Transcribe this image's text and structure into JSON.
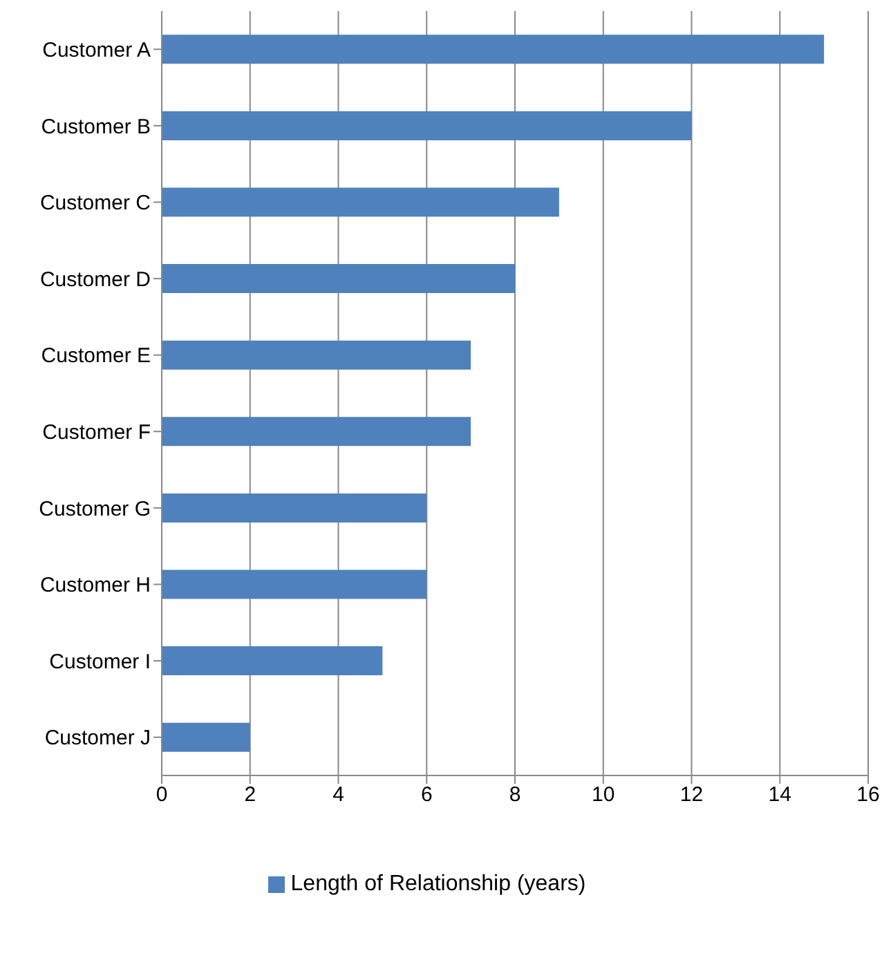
{
  "chart_data": {
    "type": "bar",
    "orientation": "horizontal",
    "categories": [
      "Customer A",
      "Customer B",
      "Customer C",
      "Customer D",
      "Customer E",
      "Customer F",
      "Customer G",
      "Customer H",
      "Customer I",
      "Customer J"
    ],
    "series": [
      {
        "name": "Length of Relationship (years)",
        "color": "#4f81bd",
        "values": [
          15,
          12,
          9,
          8,
          7,
          7,
          6,
          6,
          5,
          2
        ]
      }
    ],
    "xlim": [
      0,
      16
    ],
    "xticks": [
      0,
      2,
      4,
      6,
      8,
      10,
      12,
      14,
      16
    ],
    "grid": "x",
    "legend": "bottom"
  }
}
